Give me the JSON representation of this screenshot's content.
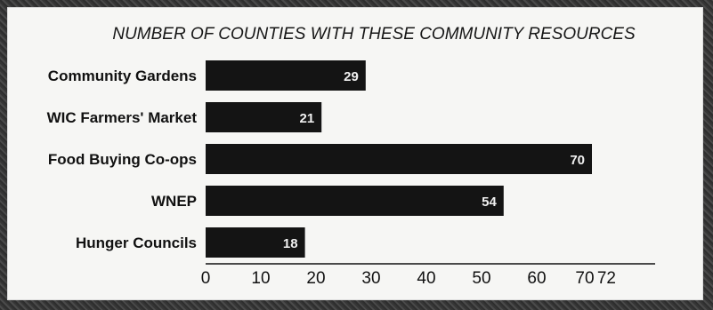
{
  "chart_data": {
    "type": "bar",
    "orientation": "horizontal",
    "title": "NUMBER OF COUNTIES WITH THESE COMMUNITY RESOURCES",
    "categories": [
      "Community Gardens",
      "WIC Farmers' Market",
      "Food Buying Co-ops",
      "WNEP",
      "Hunger Councils"
    ],
    "values": [
      29,
      21,
      70,
      54,
      18
    ],
    "xlim": [
      0,
      72
    ],
    "ticks": [
      "0",
      "10",
      "20",
      "30",
      "40",
      "50",
      "60",
      "70",
      "72"
    ],
    "grid": false,
    "colors": {
      "bar": "#141414",
      "value_text": "#f0f0f0"
    }
  }
}
